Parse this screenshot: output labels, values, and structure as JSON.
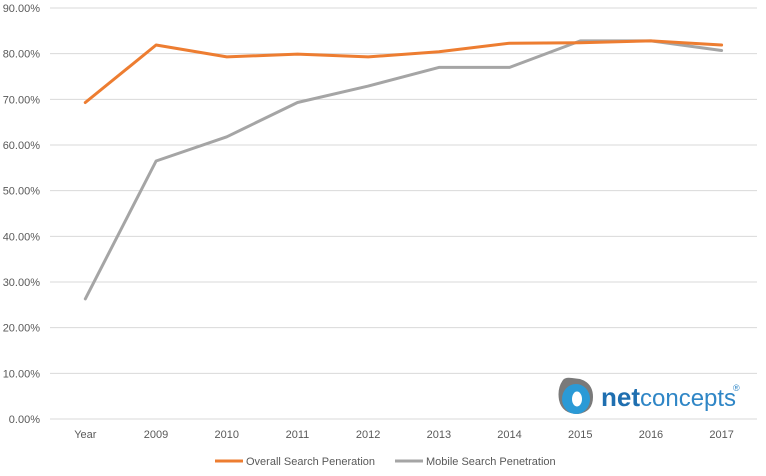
{
  "chart_data": {
    "type": "line",
    "title": "",
    "xlabel": "",
    "ylabel": "",
    "categories": [
      "Year",
      "2009",
      "2010",
      "2011",
      "2012",
      "2013",
      "2014",
      "2015",
      "2016",
      "2017"
    ],
    "ylim": [
      0,
      90
    ],
    "yticks": [
      "0.00%",
      "10.00%",
      "20.00%",
      "30.00%",
      "40.00%",
      "50.00%",
      "60.00%",
      "70.00%",
      "80.00%",
      "90.00%"
    ],
    "grid": true,
    "legend_position": "bottom",
    "series": [
      {
        "name": "Overall Search Peneration",
        "color": "#ED7D31",
        "values": [
          69.3,
          81.9,
          79.3,
          79.9,
          79.3,
          80.4,
          82.3,
          82.4,
          82.8,
          81.9
        ]
      },
      {
        "name": "Mobile Search Penetration",
        "color": "#A5A5A5",
        "values": [
          26.3,
          56.5,
          61.8,
          69.3,
          72.9,
          77.0,
          77.0,
          82.8,
          82.8,
          80.7
        ]
      }
    ]
  },
  "logo": {
    "text_net": "net",
    "text_concepts": "concepts",
    "registered": "®",
    "icon": "netconcepts-logo-icon"
  }
}
